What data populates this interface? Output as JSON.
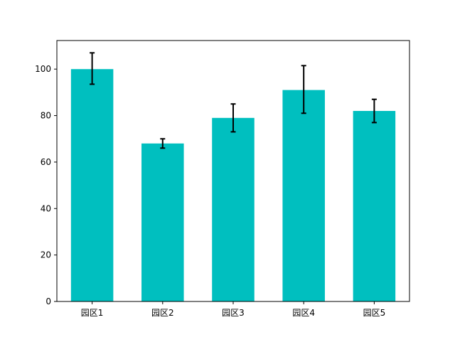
{
  "chart_data": {
    "type": "bar",
    "categories": [
      "园区1",
      "园区2",
      "园区3",
      "园区4",
      "园区5"
    ],
    "values": [
      100,
      68,
      79,
      91,
      82
    ],
    "error_low": [
      93.5,
      66,
      73,
      81,
      77
    ],
    "error_high": [
      107,
      70,
      85,
      101.5,
      87
    ],
    "title": "",
    "xlabel": "",
    "ylabel": "",
    "ylim": [
      0,
      112.3
    ],
    "yticks": [
      0,
      20,
      40,
      60,
      80,
      100
    ],
    "bar_color": "#00bfbf",
    "error_color": "#000000",
    "grid": false,
    "legend": "none"
  }
}
